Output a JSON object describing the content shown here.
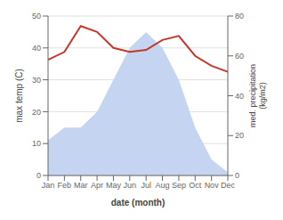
{
  "chart_data": {
    "type": "area",
    "categories": [
      "Jan",
      "Feb",
      "Mar",
      "Apr",
      "May",
      "Jun",
      "Jul",
      "Aug",
      "Sep",
      "Oct",
      "Nov",
      "Dec"
    ],
    "series": [
      {
        "type": "area",
        "color": "#c5d4f0",
        "values": [
          11,
          15,
          15,
          20,
          30,
          40,
          45,
          40,
          30,
          15,
          5,
          1
        ]
      },
      {
        "type": "line",
        "color": "#c0392b",
        "axis": "y2",
        "values": [
          58,
          62,
          75,
          72,
          64,
          62,
          63,
          68,
          70,
          60,
          55,
          52
        ]
      }
    ],
    "xlabel": "date (month)",
    "ylabel": "max temp (C)",
    "y2label": "med. precipitation\n(kg/m2)",
    "ylim": [
      0,
      50
    ],
    "yticks": [
      0,
      10,
      20,
      30,
      40,
      50
    ],
    "y2lim": [
      0,
      80
    ],
    "y2ticks": [
      0,
      20,
      40,
      60,
      80
    ],
    "grid": true
  }
}
